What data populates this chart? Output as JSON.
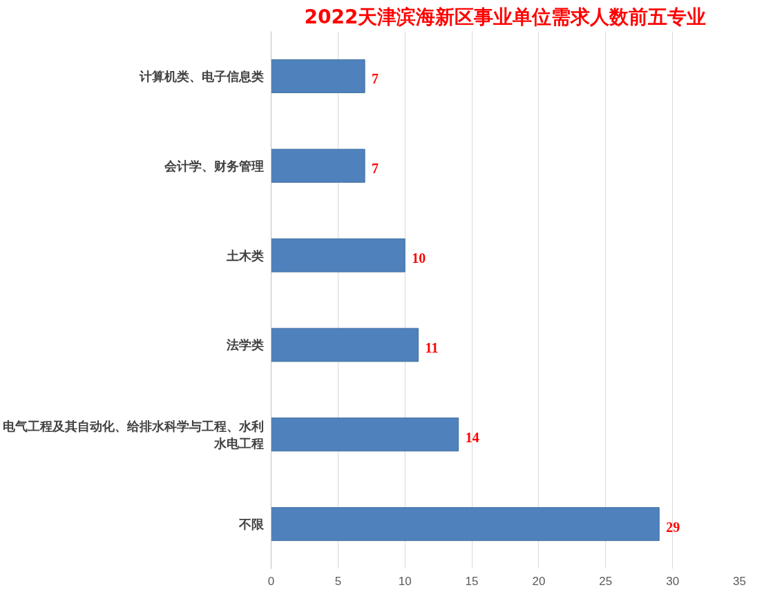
{
  "chart_data": {
    "type": "bar",
    "orientation": "horizontal",
    "title": "2022天津滨海新区事业单位需求人数前五专业",
    "categories": [
      "计算机类、电子信息类",
      "会计学、财务管理",
      "土木类",
      "法学类",
      "电气工程及其自动化、给排水科学与工程、水利水电工程",
      "不限"
    ],
    "values": [
      7,
      7,
      10,
      11,
      14,
      29
    ],
    "color": "#4f81bd",
    "xlim": [
      0,
      35
    ],
    "xticks": [
      0,
      5,
      10,
      15,
      20,
      25,
      30,
      35
    ],
    "grid": "x",
    "data_labels": true
  }
}
